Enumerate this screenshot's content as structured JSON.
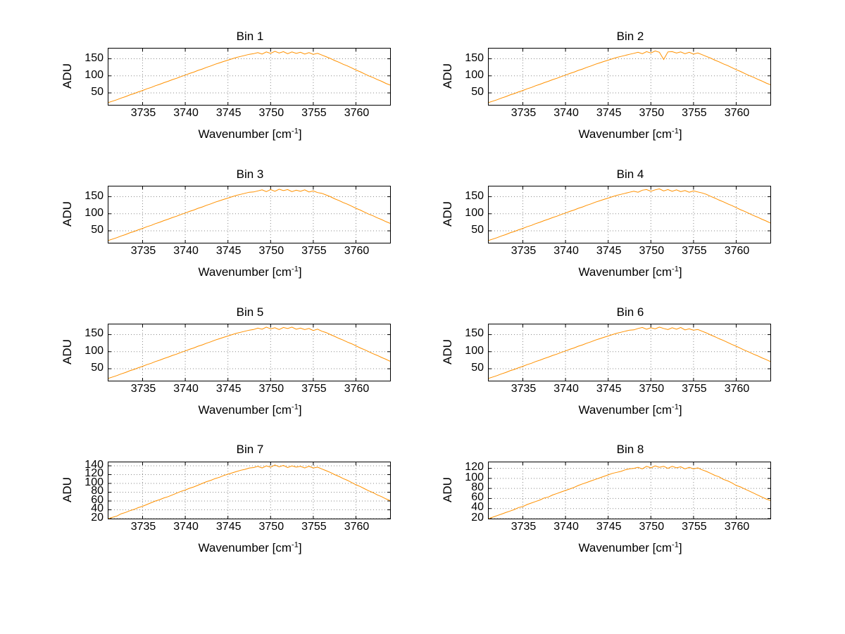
{
  "chart_data": {
    "type": "line",
    "layout": {
      "rows": 4,
      "cols": 2,
      "grid": "dotted",
      "legend": "none"
    },
    "xlabel_prefix": "Wavenumber [cm",
    "xlabel_sup": "-1",
    "xlabel_suffix": "]",
    "ylabel": "ADU",
    "x_ticks": [
      3735,
      3740,
      3745,
      3750,
      3755,
      3760
    ],
    "xlim": [
      3731,
      3764
    ],
    "x_start": 3731,
    "x_step": 0.5,
    "line_color": "#ff9100",
    "grid_color": "#8a8a8a",
    "subplots": [
      {
        "title": "Bin 1",
        "y_ticks": [
          50,
          100,
          150
        ],
        "ylim": [
          15,
          180
        ],
        "values": [
          22,
          26,
          30,
          35,
          39,
          44,
          48,
          53,
          57,
          62,
          66,
          71,
          75,
          80,
          84,
          89,
          93,
          98,
          102,
          107,
          111,
          116,
          120,
          125,
          129,
          134,
          138,
          142,
          146,
          150,
          154,
          157,
          160,
          163,
          165,
          168,
          164,
          170,
          166,
          172,
          167,
          171,
          165,
          170,
          166,
          169,
          164,
          168,
          163,
          166,
          161,
          156,
          151,
          145,
          140,
          134,
          129,
          123,
          117,
          112,
          106,
          100,
          95,
          89,
          84,
          78,
          73
        ]
      },
      {
        "title": "Bin 2",
        "y_ticks": [
          50,
          100,
          150
        ],
        "ylim": [
          15,
          180
        ],
        "values": [
          22,
          26,
          30,
          35,
          39,
          44,
          48,
          53,
          57,
          62,
          66,
          71,
          75,
          80,
          84,
          89,
          93,
          98,
          102,
          107,
          111,
          116,
          120,
          125,
          129,
          134,
          138,
          142,
          146,
          150,
          154,
          157,
          160,
          163,
          166,
          169,
          165,
          171,
          167,
          173,
          169,
          148,
          170,
          171,
          167,
          170,
          165,
          169,
          164,
          167,
          162,
          157,
          152,
          146,
          141,
          135,
          130,
          124,
          118,
          113,
          107,
          101,
          96,
          90,
          85,
          79,
          74
        ]
      },
      {
        "title": "Bin 3",
        "y_ticks": [
          50,
          100,
          150
        ],
        "ylim": [
          15,
          180
        ],
        "values": [
          22,
          26,
          30,
          35,
          39,
          44,
          48,
          53,
          57,
          62,
          66,
          71,
          75,
          80,
          84,
          89,
          93,
          98,
          102,
          107,
          111,
          116,
          120,
          125,
          129,
          134,
          138,
          142,
          146,
          150,
          154,
          157,
          160,
          163,
          164,
          167,
          170,
          165,
          171,
          166,
          172,
          168,
          171,
          165,
          169,
          166,
          170,
          164,
          167,
          162,
          160,
          155,
          150,
          144,
          139,
          133,
          128,
          122,
          116,
          111,
          105,
          99,
          94,
          88,
          83,
          77,
          72
        ]
      },
      {
        "title": "Bin 4",
        "y_ticks": [
          50,
          100,
          150
        ],
        "ylim": [
          15,
          180
        ],
        "values": [
          22,
          26,
          30,
          35,
          39,
          44,
          48,
          53,
          57,
          62,
          66,
          71,
          75,
          80,
          84,
          89,
          93,
          98,
          102,
          107,
          111,
          116,
          120,
          125,
          129,
          134,
          138,
          142,
          146,
          150,
          154,
          157,
          160,
          163,
          166,
          163,
          169,
          171,
          166,
          170,
          173,
          167,
          171,
          166,
          170,
          165,
          168,
          163,
          167,
          164,
          161,
          157,
          151,
          146,
          140,
          135,
          129,
          124,
          118,
          112,
          107,
          101,
          95,
          90,
          84,
          79,
          73
        ]
      },
      {
        "title": "Bin 5",
        "y_ticks": [
          50,
          100,
          150
        ],
        "ylim": [
          15,
          180
        ],
        "values": [
          22,
          26,
          30,
          35,
          39,
          44,
          48,
          53,
          57,
          62,
          66,
          71,
          75,
          80,
          84,
          89,
          93,
          98,
          102,
          107,
          111,
          116,
          120,
          125,
          129,
          134,
          138,
          142,
          146,
          150,
          154,
          157,
          160,
          163,
          165,
          169,
          166,
          172,
          167,
          170,
          165,
          171,
          168,
          172,
          166,
          169,
          165,
          168,
          162,
          166,
          160,
          156,
          150,
          145,
          139,
          134,
          128,
          123,
          117,
          111,
          106,
          100,
          94,
          89,
          83,
          78,
          72
        ]
      },
      {
        "title": "Bin 6",
        "y_ticks": [
          50,
          100,
          150
        ],
        "ylim": [
          15,
          180
        ],
        "values": [
          22,
          26,
          30,
          35,
          39,
          44,
          48,
          53,
          57,
          62,
          66,
          71,
          75,
          80,
          84,
          89,
          93,
          98,
          102,
          107,
          111,
          116,
          120,
          125,
          129,
          134,
          138,
          142,
          146,
          150,
          154,
          157,
          160,
          163,
          164,
          168,
          171,
          166,
          170,
          167,
          172,
          168,
          165,
          170,
          166,
          171,
          164,
          167,
          163,
          165,
          160,
          155,
          149,
          144,
          138,
          133,
          127,
          121,
          116,
          110,
          104,
          99,
          93,
          88,
          82,
          77,
          71
        ]
      },
      {
        "title": "Bin 7",
        "y_ticks": [
          20,
          40,
          60,
          80,
          100,
          120,
          140
        ],
        "ylim": [
          20,
          148
        ],
        "values": [
          20,
          23,
          26,
          31,
          34,
          38,
          41,
          45,
          48,
          52,
          56,
          60,
          63,
          67,
          70,
          74,
          78,
          82,
          85,
          89,
          92,
          96,
          100,
          104,
          107,
          111,
          114,
          118,
          121,
          124,
          127,
          130,
          132,
          135,
          136,
          139,
          135,
          140,
          137,
          142,
          138,
          141,
          136,
          140,
          137,
          139,
          135,
          139,
          135,
          137,
          133,
          129,
          125,
          120,
          116,
          111,
          107,
          102,
          97,
          93,
          88,
          83,
          79,
          74,
          70,
          65,
          61
        ]
      },
      {
        "title": "Bin 8",
        "y_ticks": [
          20,
          40,
          60,
          80,
          100,
          120
        ],
        "ylim": [
          20,
          132
        ],
        "values": [
          20,
          23,
          26,
          29,
          32,
          35,
          38,
          42,
          44,
          48,
          51,
          54,
          57,
          61,
          63,
          67,
          70,
          73,
          76,
          79,
          82,
          86,
          89,
          92,
          95,
          98,
          101,
          104,
          107,
          110,
          112,
          114,
          117,
          119,
          120,
          122,
          119,
          124,
          121,
          125,
          122,
          124,
          120,
          124,
          121,
          123,
          119,
          122,
          119,
          121,
          117,
          114,
          110,
          106,
          103,
          98,
          95,
          91,
          86,
          83,
          79,
          75,
          71,
          67,
          63,
          59,
          56
        ]
      }
    ]
  }
}
